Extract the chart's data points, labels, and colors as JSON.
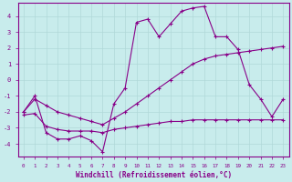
{
  "xlabel": "Windchill (Refroidissement éolien,°C)",
  "bg_color": "#c8ecec",
  "grid_color": "#b0d8d8",
  "line_color": "#880088",
  "xlim": [
    -0.5,
    23.5
  ],
  "ylim": [
    -4.8,
    4.8
  ],
  "xticks": [
    0,
    1,
    2,
    3,
    4,
    5,
    6,
    7,
    8,
    9,
    10,
    11,
    12,
    13,
    14,
    15,
    16,
    17,
    18,
    19,
    20,
    21,
    22,
    23
  ],
  "yticks": [
    -4,
    -3,
    -2,
    -1,
    0,
    1,
    2,
    3,
    4
  ],
  "series1_x": [
    0,
    1,
    2,
    3,
    4,
    5,
    6,
    7,
    8,
    9,
    10,
    11,
    12,
    13,
    14,
    15,
    16,
    17,
    18,
    19,
    20,
    21,
    22,
    23
  ],
  "series1_y": [
    -2.0,
    -1.0,
    -3.3,
    -3.7,
    -3.7,
    -3.5,
    -3.8,
    -4.5,
    -1.5,
    -0.5,
    3.6,
    3.8,
    2.7,
    3.5,
    4.3,
    4.5,
    4.6,
    2.7,
    2.7,
    1.9,
    -0.3,
    -1.2,
    -2.3,
    -1.2
  ],
  "series2_x": [
    0,
    1,
    2,
    3,
    4,
    5,
    6,
    7,
    8,
    9,
    10,
    11,
    12,
    13,
    14,
    15,
    16,
    17,
    18,
    19,
    20,
    21,
    22,
    23
  ],
  "series2_y": [
    -2.2,
    -2.1,
    -2.9,
    -3.1,
    -3.2,
    -3.2,
    -3.2,
    -3.3,
    -3.1,
    -3.0,
    -2.9,
    -2.8,
    -2.7,
    -2.6,
    -2.6,
    -2.5,
    -2.5,
    -2.5,
    -2.5,
    -2.5,
    -2.5,
    -2.5,
    -2.5,
    -2.5
  ],
  "series3_x": [
    0,
    1,
    2,
    3,
    4,
    5,
    6,
    7,
    8,
    9,
    10,
    11,
    12,
    13,
    14,
    15,
    16,
    17,
    18,
    19,
    20,
    21,
    22,
    23
  ],
  "series3_y": [
    -2.0,
    -1.2,
    -1.6,
    -2.0,
    -2.2,
    -2.4,
    -2.6,
    -2.8,
    -2.4,
    -2.0,
    -1.5,
    -1.0,
    -0.5,
    0.0,
    0.5,
    1.0,
    1.3,
    1.5,
    1.6,
    1.7,
    1.8,
    1.9,
    2.0,
    2.1
  ]
}
